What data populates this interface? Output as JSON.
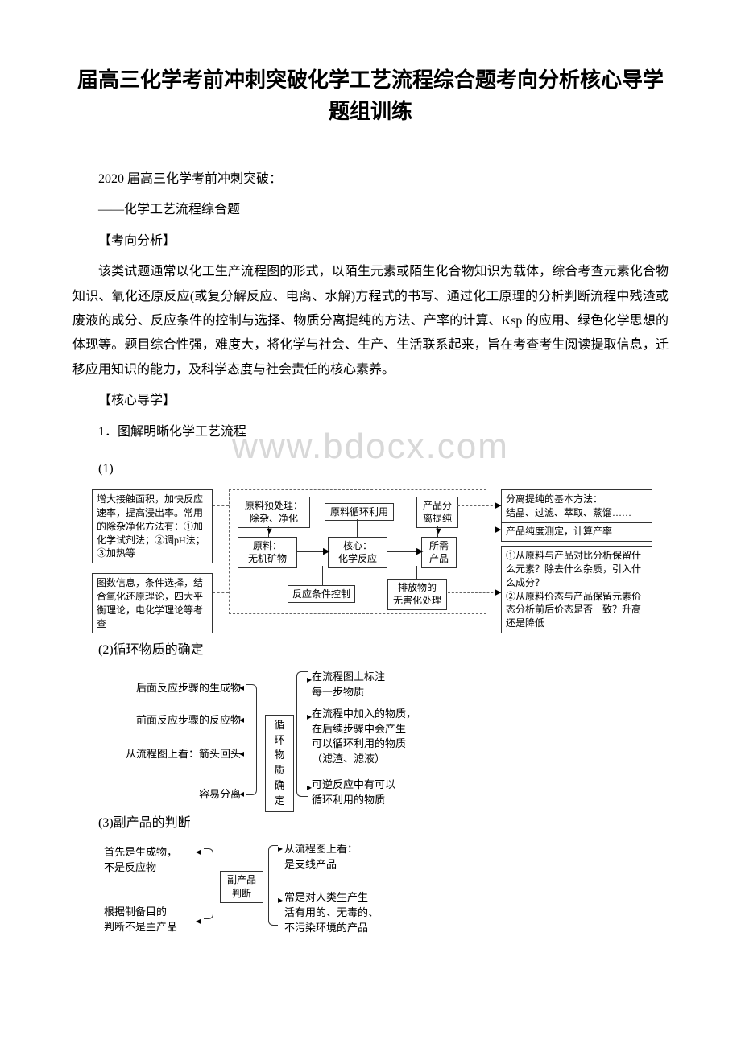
{
  "title": "届高三化学考前冲刺突破化学工艺流程综合题考向分析核心导学题组训练",
  "intro_line1": "2020 届高三化学考前冲刺突破：",
  "intro_line2": "——化学工艺流程综合题",
  "sec_exam": "【考向分析】",
  "exam_para": "该类试题通常以化工生产流程图的形式，以陌生元素或陌生化合物知识为载体，综合考查元素化合物知识、氧化还原反应(或复分解反应、电离、水解)方程式的书写、通过化工原理的分析判断流程中残渣或废液的成分、反应条件的控制与选择、物质分离提纯的方法、产率的计算、Ksp 的应用、绿色化学思想的体现等。题目综合性强，难度大，将化学与社会、生产、生活联系起来，旨在考查考生阅读提取信息，迁移应用知识的能力，及科学态度与社会责任的核心素养。",
  "sec_core": "【核心导学】",
  "h1": "1．图解明晰化学工艺流程",
  "h1_1": "(1)",
  "watermark": "www.bdocx.com",
  "d1": {
    "left1": "增大接触面积，加快反应速率，提高浸出率。常用的除杂净化方法有：①加化学试剂法；②调pH法；③加热等",
    "left2": "图数信息，条件选择，结合氧化还原理论，四大平衡理论，电化学理论等考查",
    "b_pretreat": "原料预处理：\n除杂、净化",
    "b_recycle": "原料循环利用",
    "b_sep": "产品分\n离提纯",
    "b_raw": "原料：\n无机矿物",
    "b_core": "核心：\n化学反应",
    "b_prod": "所需\n产品",
    "b_cond": "反应条件控制",
    "b_waste": "排放物的\n无害化处理",
    "right1": "分离提纯的基本方法：\n结晶、过滤、萃取、蒸馏……",
    "right2": "产品纯度测定，计算产率",
    "right3": "①从原料与产品对比分析保留什么元素？除去什么杂质，引入什么成分？\n②从原料价态与产品保留元素价态分析前后价态是否一致？升高还是降低"
  },
  "h1_2": "(2)循环物质的确定",
  "d2": {
    "l1": "后面反应步骤的生成物",
    "l2": "前面反应步骤的反应物",
    "l3": "从流程图上看：箭头回头",
    "l4": "容易分离",
    "mid": "循\n环\n物\n质\n确\n定",
    "r1": "在流程图上标注\n每一步物质",
    "r2": "在流程中加入的物质，\n在后续步骤中会产生\n可以循环利用的物质\n（滤渣、滤液）",
    "r3": "可逆反应中有可以\n循环利用的物质"
  },
  "h1_3": "(3)副产品的判断",
  "d3": {
    "l1": "首先是生成物，\n不是反应物",
    "l2": "根据制备目的\n判断不是主产品",
    "mid": "副产品\n判断",
    "r1": "从流程图上看：\n是支线产品",
    "r2": "常是对人类生产生\n活有用的、无毒的、\n不污染环境的产品"
  }
}
